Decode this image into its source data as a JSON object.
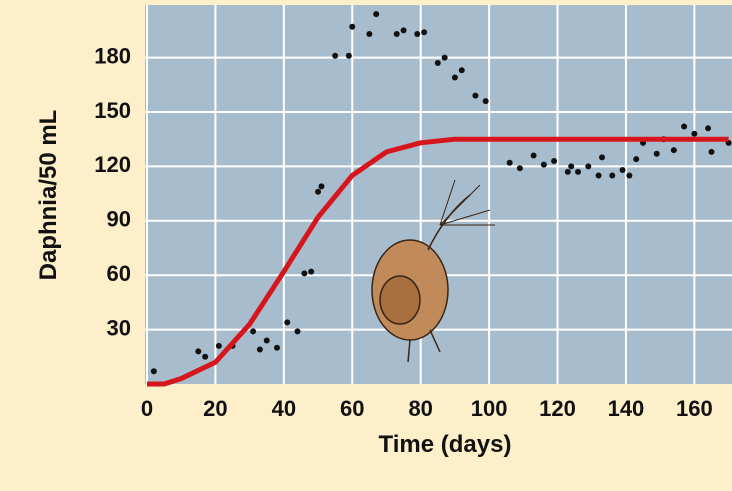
{
  "chart_data": {
    "type": "scatter",
    "x_label": "Time (days)",
    "y_label": "Daphnia/50 mL",
    "xlim": [
      0,
      171
    ],
    "ylim": [
      0,
      209
    ],
    "xticks": [
      0,
      20,
      40,
      60,
      80,
      100,
      120,
      140,
      160
    ],
    "yticks": [
      30,
      60,
      90,
      120,
      150,
      180
    ],
    "grid": true,
    "series": [
      {
        "type": "scatter",
        "color": "#111111",
        "x": [
          2,
          15,
          17,
          21,
          25,
          31,
          33,
          35,
          38,
          41,
          44,
          46,
          48,
          50,
          51,
          55,
          59,
          60,
          65,
          67,
          73,
          75,
          79,
          81,
          85,
          87,
          90,
          92,
          96,
          99,
          106,
          109,
          113,
          116,
          119,
          123,
          124,
          126,
          129,
          132,
          133,
          136,
          139,
          141,
          143,
          145,
          149,
          151,
          154,
          157,
          160,
          164,
          165,
          170
        ],
        "values": [
          7,
          18,
          15,
          21,
          21,
          29,
          19,
          24,
          20,
          34,
          29,
          61,
          62,
          106,
          109,
          181,
          181,
          197,
          193,
          204,
          193,
          195,
          193,
          194,
          177,
          180,
          169,
          173,
          159,
          156,
          122,
          119,
          126,
          121,
          123,
          117,
          120,
          117,
          120,
          115,
          125,
          115,
          118,
          115,
          124,
          133,
          127,
          135,
          129,
          142,
          138,
          141,
          128,
          133
        ]
      },
      {
        "type": "line",
        "color": "#d7151c",
        "x": [
          0,
          5,
          10,
          20,
          30,
          40,
          50,
          60,
          70,
          80,
          90,
          100,
          110,
          120,
          130,
          140,
          150,
          160,
          170
        ],
        "values": [
          0,
          0,
          3,
          12,
          33,
          62,
          92,
          115,
          128,
          133,
          135,
          135,
          135,
          135,
          135,
          135,
          135,
          135,
          135
        ]
      }
    ]
  }
}
